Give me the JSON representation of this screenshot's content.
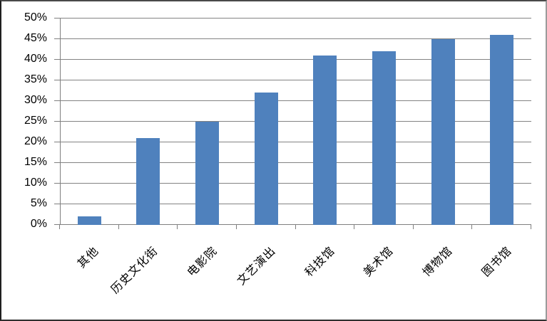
{
  "chart_data": {
    "type": "bar",
    "title": "",
    "xlabel": "",
    "ylabel": "",
    "categories": [
      "其他",
      "历史文化街",
      "电影院",
      "文艺演出",
      "科技馆",
      "美术馆",
      "博物馆",
      "图书馆"
    ],
    "values": [
      2,
      21,
      25,
      32,
      41,
      42,
      45,
      46
    ],
    "value_unit": "%",
    "ylim": [
      0,
      50
    ],
    "ytick_step": 5,
    "ytick_labels": [
      "0%",
      "5%",
      "10%",
      "15%",
      "20%",
      "25%",
      "30%",
      "35%",
      "40%",
      "45%",
      "50%"
    ],
    "grid": true,
    "legend_position": "none",
    "category_label_rotation_deg": 45,
    "bar_color": "#4F81BD",
    "gridline_color": "#838383",
    "axis_color": "#7f7f7f",
    "text_color": "#000000",
    "background_color": "#ffffff"
  }
}
